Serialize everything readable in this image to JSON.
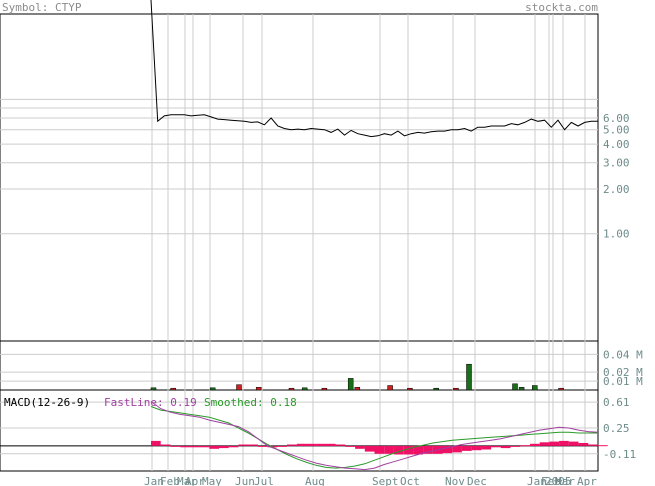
{
  "header": {
    "symbol_text": "Symbol: CTYP",
    "site_text": "stockta.com"
  },
  "colors": {
    "price_line": "#000000",
    "vol_up": "#1a6e1a",
    "vol_down": "#cc2222",
    "fast_line": "#a040a0",
    "smoothed_line": "#2a9a2a",
    "histogram": "#ee1166",
    "grid": "#cccccc",
    "axis_text": "#6e8b8b",
    "header_text": "#8c8c8c"
  },
  "chart_data": [
    {
      "type": "line",
      "title": "",
      "scale": "log",
      "ylim": [
        0.19,
        30
      ],
      "y_ticks": [
        "6.00",
        "5.00",
        "4.00",
        "3.00",
        "2.00",
        "1.00"
      ],
      "series": [
        {
          "values": [
            40,
            5.7,
            6.2,
            6.3,
            6.3,
            6.3,
            6.2,
            6.25,
            6.3,
            6.1,
            5.9,
            5.85,
            5.8,
            5.75,
            5.7,
            5.6,
            5.65,
            5.4,
            6.0,
            5.3,
            5.1,
            5.0,
            5.05,
            5.0,
            5.1,
            5.05,
            5.0,
            4.8,
            5.05,
            4.6,
            4.95,
            4.7,
            4.6,
            4.5,
            4.55,
            4.7,
            4.6,
            4.9,
            4.55,
            4.7,
            4.8,
            4.75,
            4.85,
            4.9,
            4.9,
            5.0,
            5.0,
            5.1,
            4.9,
            5.2,
            5.2,
            5.3,
            5.3,
            5.3,
            5.5,
            5.4,
            5.6,
            5.9,
            5.7,
            5.8,
            5.2,
            5.8,
            5.0,
            5.6,
            5.3,
            5.6,
            5.7,
            5.7
          ]
        }
      ]
    },
    {
      "type": "bar",
      "title": "",
      "ylim": [
        0,
        0.055
      ],
      "y_ticks": [
        "0.04 M",
        "0.02 M",
        "0.01 M"
      ],
      "series": [
        {
          "values": [
            {
              "i": 0,
              "v": 0.0025,
              "dir": "up"
            },
            {
              "i": 3,
              "v": 0.002,
              "dir": "down"
            },
            {
              "i": 9,
              "v": 0.0025,
              "dir": "up"
            },
            {
              "i": 13,
              "v": 0.006,
              "dir": "down"
            },
            {
              "i": 16,
              "v": 0.003,
              "dir": "down"
            },
            {
              "i": 21,
              "v": 0.002,
              "dir": "down"
            },
            {
              "i": 23,
              "v": 0.0025,
              "dir": "up"
            },
            {
              "i": 26,
              "v": 0.002,
              "dir": "down"
            },
            {
              "i": 30,
              "v": 0.013,
              "dir": "up"
            },
            {
              "i": 31,
              "v": 0.003,
              "dir": "down"
            },
            {
              "i": 36,
              "v": 0.005,
              "dir": "down"
            },
            {
              "i": 39,
              "v": 0.002,
              "dir": "down"
            },
            {
              "i": 43,
              "v": 0.002,
              "dir": "up"
            },
            {
              "i": 46,
              "v": 0.002,
              "dir": "down"
            },
            {
              "i": 48,
              "v": 0.029,
              "dir": "up"
            },
            {
              "i": 55,
              "v": 0.007,
              "dir": "up"
            },
            {
              "i": 56,
              "v": 0.003,
              "dir": "up"
            },
            {
              "i": 58,
              "v": 0.005,
              "dir": "up"
            },
            {
              "i": 62,
              "v": 0.002,
              "dir": "down"
            }
          ]
        }
      ]
    },
    {
      "type": "line",
      "title": "MACD(12-26-9)",
      "legend": [
        {
          "label": "FastLine: 0.19",
          "color_key": "fast_line"
        },
        {
          "label": "Smoothed: 0.18",
          "color_key": "smoothed_line"
        }
      ],
      "ylim": [
        -0.35,
        0.78
      ],
      "y_ticks": [
        "0.61",
        "0.25",
        "-0.11"
      ],
      "zero_line": 0,
      "series": [
        {
          "name": "FastLine",
          "values": [
            0.62,
            0.52,
            0.47,
            0.44,
            0.42,
            0.4,
            0.36,
            0.33,
            0.3,
            0.27,
            0.2,
            0.1,
            0.0,
            -0.05,
            -0.1,
            -0.15,
            -0.2,
            -0.24,
            -0.27,
            -0.29,
            -0.31,
            -0.32,
            -0.33,
            -0.31,
            -0.26,
            -0.22,
            -0.18,
            -0.14,
            -0.1,
            -0.07,
            -0.04,
            -0.01,
            0.02,
            0.04,
            0.06,
            0.08,
            0.1,
            0.13,
            0.16,
            0.19,
            0.22,
            0.24,
            0.26,
            0.25,
            0.22,
            0.2,
            0.19
          ]
        },
        {
          "name": "Smoothed",
          "values": [
            0.55,
            0.5,
            0.48,
            0.46,
            0.44,
            0.42,
            0.4,
            0.36,
            0.32,
            0.25,
            0.18,
            0.1,
            0.02,
            -0.05,
            -0.12,
            -0.18,
            -0.23,
            -0.27,
            -0.3,
            -0.31,
            -0.3,
            -0.28,
            -0.25,
            -0.2,
            -0.15,
            -0.1,
            -0.06,
            -0.02,
            0.01,
            0.04,
            0.06,
            0.08,
            0.09,
            0.1,
            0.11,
            0.12,
            0.13,
            0.14,
            0.15,
            0.16,
            0.17,
            0.18,
            0.19,
            0.19,
            0.18,
            0.18,
            0.18
          ]
        },
        {
          "name": "Histogram",
          "values": [
            0.07,
            0.02,
            -0.01,
            -0.02,
            -0.02,
            -0.02,
            -0.04,
            -0.03,
            -0.02,
            0.02,
            0.02,
            0.0,
            -0.02,
            0.0,
            0.02,
            0.03,
            0.03,
            0.03,
            0.03,
            0.02,
            -0.01,
            -0.04,
            -0.08,
            -0.11,
            -0.11,
            -0.12,
            -0.12,
            -0.12,
            -0.11,
            -0.11,
            -0.1,
            -0.09,
            -0.07,
            -0.06,
            -0.05,
            -0.02,
            -0.03,
            0.0,
            0.01,
            0.03,
            0.05,
            0.06,
            0.07,
            0.06,
            0.04,
            0.02,
            0.01
          ]
        }
      ]
    }
  ],
  "x_axis": {
    "labels": [
      "Jan",
      "Feb",
      "Mar",
      "Apr",
      "May",
      "Jun",
      "Jul",
      "Aug",
      "Sept",
      "Oct",
      "Nov",
      "Dec",
      "Jan",
      "Feb",
      "2005",
      "Mar",
      "Apr"
    ]
  }
}
